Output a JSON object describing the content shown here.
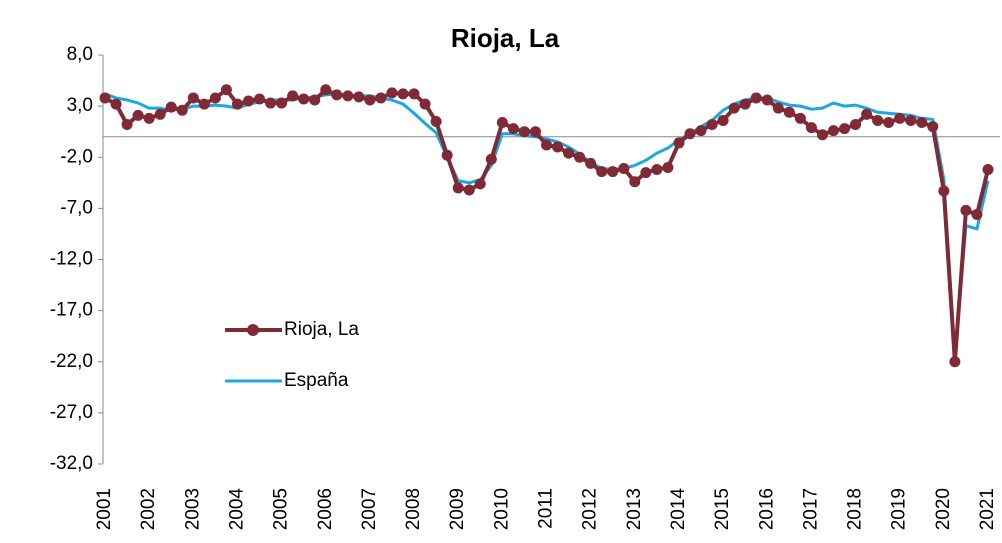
{
  "chart_data": {
    "type": "line",
    "title": "Rioja, La",
    "categories": [
      "2001",
      null,
      null,
      null,
      "2002",
      null,
      null,
      null,
      "2003",
      null,
      null,
      null,
      "2004",
      null,
      null,
      null,
      "2005",
      null,
      null,
      null,
      "2006",
      null,
      null,
      null,
      "2007",
      null,
      null,
      null,
      "2008",
      null,
      null,
      null,
      "2009",
      null,
      null,
      null,
      "2010",
      null,
      null,
      null,
      "2011",
      null,
      null,
      null,
      "2012",
      null,
      null,
      null,
      "2013",
      null,
      null,
      null,
      "2014",
      null,
      null,
      null,
      "2015",
      null,
      null,
      null,
      "2016",
      null,
      null,
      null,
      "2017",
      null,
      null,
      null,
      "2018",
      null,
      null,
      null,
      "2019",
      null,
      null,
      null,
      "2020",
      null,
      null,
      null,
      "2021"
    ],
    "series": [
      {
        "name": "Rioja, La",
        "color": "#7f2a35",
        "values": [
          3.8,
          3.2,
          1.2,
          2.1,
          1.8,
          2.2,
          2.9,
          2.6,
          3.8,
          3.2,
          3.8,
          4.6,
          3.2,
          3.5,
          3.7,
          3.3,
          3.3,
          4.0,
          3.7,
          3.6,
          4.6,
          4.1,
          4.0,
          3.9,
          3.6,
          3.8,
          4.3,
          4.2,
          4.2,
          3.2,
          1.5,
          -1.8,
          -5.0,
          -5.2,
          -4.6,
          -2.2,
          1.4,
          0.8,
          0.5,
          0.5,
          -0.8,
          -1.0,
          -1.6,
          -2.0,
          -2.6,
          -3.4,
          -3.4,
          -3.1,
          -4.4,
          -3.5,
          -3.2,
          -3.0,
          -0.6,
          0.3,
          0.6,
          1.2,
          1.6,
          2.8,
          3.2,
          3.8,
          3.6,
          2.8,
          2.4,
          1.8,
          0.9,
          0.2,
          0.6,
          0.8,
          1.2,
          2.2,
          1.6,
          1.4,
          1.8,
          1.6,
          1.4,
          1.0,
          -5.3,
          -22.0,
          -7.2,
          -7.6,
          -3.2
        ]
      },
      {
        "name": "España",
        "color": "#1ba8e0",
        "values": [
          4.2,
          3.8,
          3.6,
          3.3,
          2.8,
          2.8,
          2.6,
          2.7,
          3.0,
          3.0,
          3.1,
          3.0,
          2.8,
          3.2,
          3.4,
          3.6,
          3.6,
          3.6,
          3.8,
          3.9,
          4.1,
          4.2,
          4.1,
          4.0,
          4.0,
          3.8,
          3.6,
          3.2,
          2.3,
          1.3,
          0.4,
          -2.0,
          -4.3,
          -4.5,
          -4.2,
          -2.8,
          0.3,
          0.3,
          0.1,
          0.0,
          -0.2,
          -0.5,
          -1.0,
          -1.7,
          -2.5,
          -3.1,
          -3.2,
          -3.1,
          -2.8,
          -2.3,
          -1.6,
          -1.1,
          -0.3,
          0.3,
          1.0,
          1.6,
          2.6,
          3.2,
          3.6,
          3.8,
          3.8,
          3.4,
          3.1,
          3.0,
          2.7,
          2.8,
          3.3,
          3.0,
          3.1,
          2.8,
          2.4,
          2.3,
          2.2,
          2.1,
          1.8,
          1.7,
          -4.2,
          -21.6,
          -8.7,
          -9.0,
          -4.3
        ]
      }
    ],
    "ylim": [
      -32,
      8
    ],
    "yticks": [
      {
        "value": 8,
        "label": "8,0"
      },
      {
        "value": 3,
        "label": "3,0"
      },
      {
        "value": -2,
        "label": "-2,0"
      },
      {
        "value": -7,
        "label": "-7,0"
      },
      {
        "value": -12,
        "label": "-12,0"
      },
      {
        "value": -17,
        "label": "-17,0"
      },
      {
        "value": -22,
        "label": "-22,0"
      },
      {
        "value": -27,
        "label": "-27,0"
      },
      {
        "value": -32,
        "label": "-32,0"
      }
    ],
    "grid": false,
    "legend": "lower left"
  }
}
